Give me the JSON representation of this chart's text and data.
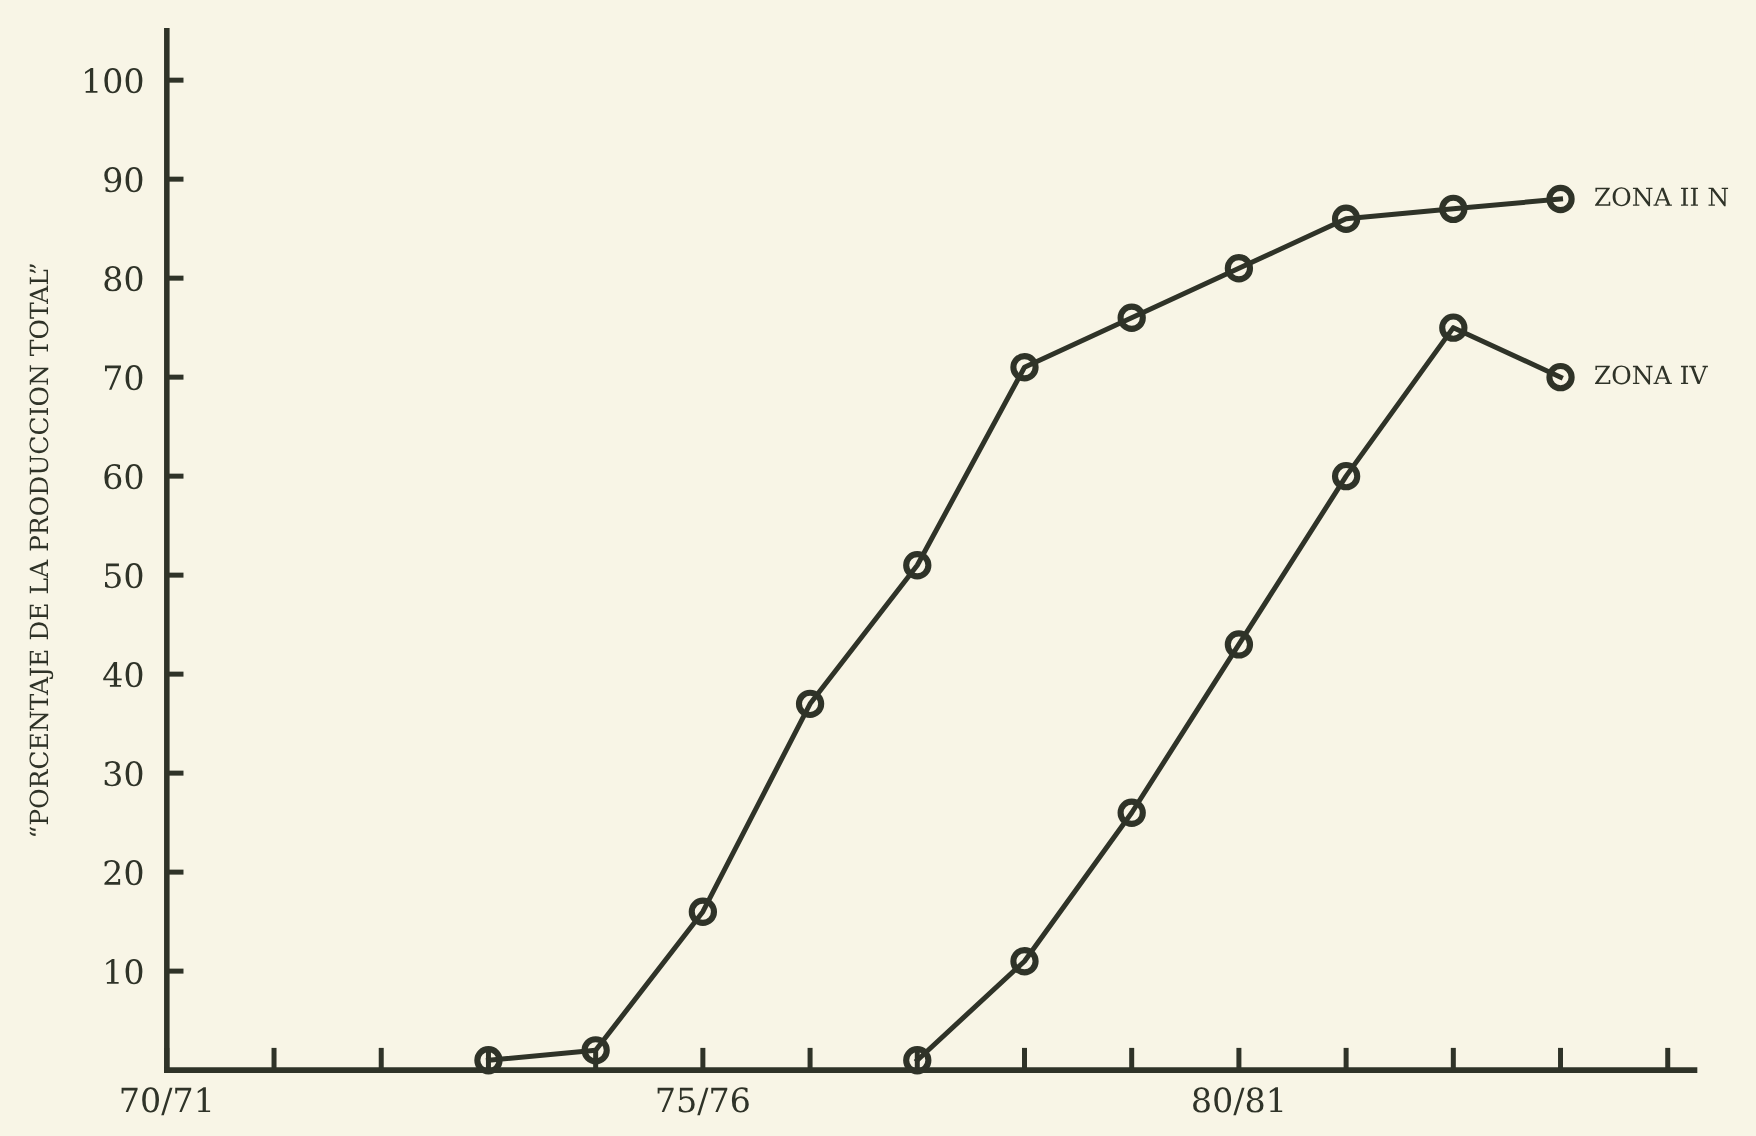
{
  "chart_data": {
    "type": "line",
    "ylabel": "“PORCENTAJE DE LA PRODUCCION TOTAL”",
    "categories": [
      "70/71",
      null,
      null,
      null,
      null,
      "75/76",
      null,
      null,
      null,
      null,
      "80/81",
      null,
      null,
      null,
      null
    ],
    "ylim": [
      0,
      105
    ],
    "yticks": [
      10,
      20,
      30,
      40,
      50,
      60,
      70,
      80,
      90,
      100
    ],
    "marker": "circle",
    "line_style": "solid",
    "grid": false,
    "legend": "right",
    "series": [
      {
        "name": "ZONA II N",
        "color": "#2f3328",
        "values": [
          null,
          null,
          null,
          1,
          2,
          16,
          37,
          51,
          71,
          76,
          81,
          86,
          87,
          88,
          null
        ]
      },
      {
        "name": "ZONA IV",
        "color": "#2f3328",
        "values": [
          null,
          null,
          null,
          null,
          null,
          null,
          null,
          1,
          11,
          26,
          43,
          60,
          75,
          70,
          null
        ]
      }
    ]
  }
}
